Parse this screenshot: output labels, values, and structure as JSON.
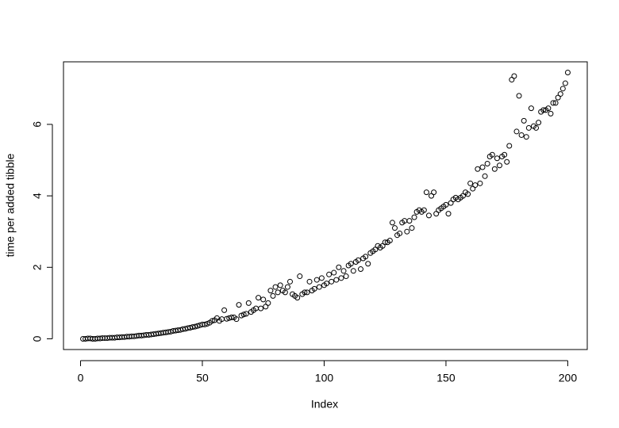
{
  "chart_data": {
    "type": "scatter",
    "x_label": "Index",
    "y_label": "time per added tibble",
    "x": [
      1,
      2,
      3,
      4,
      5,
      6,
      7,
      8,
      9,
      10,
      11,
      12,
      13,
      14,
      15,
      16,
      17,
      18,
      19,
      20,
      21,
      22,
      23,
      24,
      25,
      26,
      27,
      28,
      29,
      30,
      31,
      32,
      33,
      34,
      35,
      36,
      37,
      38,
      39,
      40,
      41,
      42,
      43,
      44,
      45,
      46,
      47,
      48,
      49,
      50,
      51,
      52,
      53,
      54,
      55,
      56,
      57,
      58,
      59,
      60,
      61,
      62,
      63,
      64,
      65,
      66,
      67,
      68,
      69,
      70,
      71,
      72,
      73,
      74,
      75,
      76,
      77,
      78,
      79,
      80,
      81,
      82,
      83,
      84,
      85,
      86,
      87,
      88,
      89,
      90,
      91,
      92,
      93,
      94,
      95,
      96,
      97,
      98,
      99,
      100,
      101,
      102,
      103,
      104,
      105,
      106,
      107,
      108,
      109,
      110,
      111,
      112,
      113,
      114,
      115,
      116,
      117,
      118,
      119,
      120,
      121,
      122,
      123,
      124,
      125,
      126,
      127,
      128,
      129,
      130,
      131,
      132,
      133,
      134,
      135,
      136,
      137,
      138,
      139,
      140,
      141,
      142,
      143,
      144,
      145,
      146,
      147,
      148,
      149,
      150,
      151,
      152,
      153,
      154,
      155,
      156,
      157,
      158,
      159,
      160,
      161,
      162,
      163,
      164,
      165,
      166,
      167,
      168,
      169,
      170,
      171,
      172,
      173,
      174,
      175,
      176,
      177,
      178,
      179,
      180,
      181,
      182,
      183,
      184,
      185,
      186,
      187,
      188,
      189,
      190,
      191,
      192,
      193,
      194,
      195,
      196,
      197,
      198,
      199,
      200
    ],
    "values": [
      0.0,
      0.0,
      0.01,
      0.01,
      0.0,
      0.0,
      0.01,
      0.01,
      0.02,
      0.02,
      0.02,
      0.03,
      0.03,
      0.03,
      0.04,
      0.04,
      0.05,
      0.05,
      0.06,
      0.06,
      0.07,
      0.07,
      0.08,
      0.09,
      0.09,
      0.1,
      0.11,
      0.11,
      0.12,
      0.13,
      0.14,
      0.15,
      0.16,
      0.17,
      0.18,
      0.19,
      0.2,
      0.22,
      0.23,
      0.24,
      0.25,
      0.27,
      0.28,
      0.3,
      0.31,
      0.33,
      0.34,
      0.36,
      0.38,
      0.4,
      0.4,
      0.42,
      0.45,
      0.5,
      0.52,
      0.58,
      0.5,
      0.55,
      0.8,
      0.56,
      0.58,
      0.6,
      0.6,
      0.55,
      0.95,
      0.65,
      0.68,
      0.7,
      1.0,
      0.75,
      0.8,
      0.85,
      1.15,
      0.85,
      1.1,
      0.9,
      1.0,
      1.35,
      1.2,
      1.45,
      1.3,
      1.5,
      1.35,
      1.3,
      1.45,
      1.6,
      1.25,
      1.2,
      1.15,
      1.75,
      1.25,
      1.3,
      1.3,
      1.6,
      1.35,
      1.4,
      1.65,
      1.45,
      1.7,
      1.5,
      1.55,
      1.8,
      1.6,
      1.85,
      1.65,
      2.0,
      1.7,
      1.9,
      1.75,
      2.05,
      2.1,
      1.9,
      2.15,
      2.2,
      1.95,
      2.25,
      2.3,
      2.1,
      2.4,
      2.45,
      2.5,
      2.6,
      2.55,
      2.6,
      2.7,
      2.7,
      2.75,
      3.25,
      3.1,
      2.9,
      2.95,
      3.25,
      3.3,
      3.0,
      3.3,
      3.1,
      3.4,
      3.55,
      3.6,
      3.55,
      3.6,
      4.1,
      3.45,
      4.0,
      4.1,
      3.5,
      3.6,
      3.65,
      3.7,
      3.75,
      3.5,
      3.8,
      3.9,
      3.95,
      3.9,
      3.95,
      4.0,
      4.1,
      4.05,
      4.35,
      4.2,
      4.3,
      4.75,
      4.35,
      4.8,
      4.55,
      4.9,
      5.1,
      5.15,
      4.75,
      5.05,
      4.85,
      5.1,
      5.15,
      4.95,
      5.4,
      7.25,
      7.35,
      5.8,
      6.8,
      5.7,
      6.1,
      5.65,
      5.9,
      6.45,
      5.95,
      5.9,
      6.05,
      6.35,
      6.4,
      6.4,
      6.45,
      6.3,
      6.6,
      6.6,
      6.75,
      6.85,
      7.0,
      7.15,
      7.45
    ],
    "color": "#000000",
    "xlim": [
      -7,
      208
    ],
    "xticks": [
      0,
      50,
      100,
      150,
      200
    ],
    "ylim": [
      -0.3,
      7.75
    ],
    "yticks": [
      0,
      2,
      4,
      6
    ],
    "grid": false
  }
}
